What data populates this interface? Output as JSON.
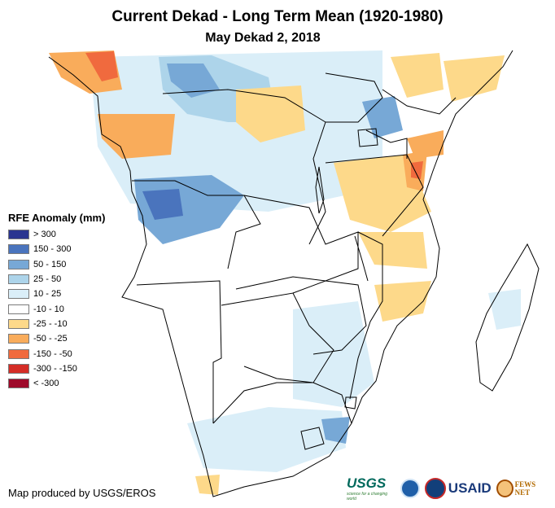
{
  "title": "Current Dekad - Long Term Mean (1920-1980)",
  "subtitle": "May Dekad 2, 2018",
  "legend": {
    "title": "RFE Anomaly (mm)",
    "items": [
      {
        "label": "> 300",
        "color": "#2b3590"
      },
      {
        "label": "150 - 300",
        "color": "#4a74bd"
      },
      {
        "label": "50 - 150",
        "color": "#77a8d6"
      },
      {
        "label": "25 - 50",
        "color": "#add4ea"
      },
      {
        "label": "10 - 25",
        "color": "#daeef8"
      },
      {
        "label": "-10 - 10",
        "color": "#ffffff"
      },
      {
        "label": "-25 - -10",
        "color": "#fdd98a"
      },
      {
        "label": "-50 - -25",
        "color": "#f9ac5b"
      },
      {
        "label": "-150 - -50",
        "color": "#f06a3e"
      },
      {
        "label": "-300 - -150",
        "color": "#d42d26"
      },
      {
        "label": "< -300",
        "color": "#9e0a2a"
      }
    ]
  },
  "credit": "Map produced by USGS/EROS",
  "logos": {
    "usgs": "USGS",
    "usgs_tagline": "science for a changing world",
    "usaid": "USAID",
    "fews": "FEWS NET"
  }
}
